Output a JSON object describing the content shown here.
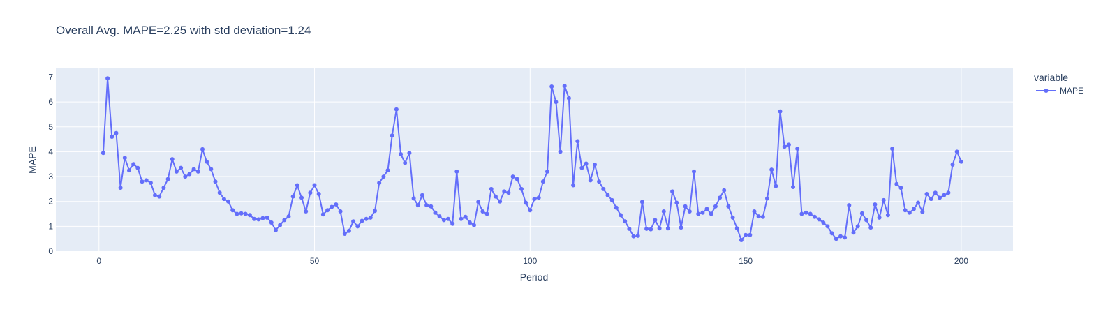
{
  "chart_data": {
    "type": "line",
    "title": "Overall Avg. MAPE=2.25 with std deviation=1.24",
    "xlabel": "Period",
    "ylabel": "MAPE",
    "xlim": [
      -10,
      212
    ],
    "ylim": [
      0,
      7.35
    ],
    "x_ticks": [
      0,
      50,
      100,
      150,
      200
    ],
    "y_ticks": [
      0,
      1,
      2,
      3,
      4,
      5,
      6,
      7
    ],
    "grid": true,
    "legend_title": "variable",
    "legend_position": "right",
    "series": [
      {
        "name": "MAPE",
        "color": "#636efa",
        "x": [
          1,
          2,
          3,
          4,
          5,
          6,
          7,
          8,
          9,
          10,
          11,
          12,
          13,
          14,
          15,
          16,
          17,
          18,
          19,
          20,
          21,
          22,
          23,
          24,
          25,
          26,
          27,
          28,
          29,
          30,
          31,
          32,
          33,
          34,
          35,
          36,
          37,
          38,
          39,
          40,
          41,
          42,
          43,
          44,
          45,
          46,
          47,
          48,
          49,
          50,
          51,
          52,
          53,
          54,
          55,
          56,
          57,
          58,
          59,
          60,
          61,
          62,
          63,
          64,
          65,
          66,
          67,
          68,
          69,
          70,
          71,
          72,
          73,
          74,
          75,
          76,
          77,
          78,
          79,
          80,
          81,
          82,
          83,
          84,
          85,
          86,
          87,
          88,
          89,
          90,
          91,
          92,
          93,
          94,
          95,
          96,
          97,
          98,
          99,
          100,
          101,
          102,
          103,
          104,
          105,
          106,
          107,
          108,
          109,
          110,
          111,
          112,
          113,
          114,
          115,
          116,
          117,
          118,
          119,
          120,
          121,
          122,
          123,
          124,
          125,
          126,
          127,
          128,
          129,
          130,
          131,
          132,
          133,
          134,
          135,
          136,
          137,
          138,
          139,
          140,
          141,
          142,
          143,
          144,
          145,
          146,
          147,
          148,
          149,
          150,
          151,
          152,
          153,
          154,
          155,
          156,
          157,
          158,
          159,
          160,
          161,
          162,
          163,
          164,
          165,
          166,
          167,
          168,
          169,
          170,
          171,
          172,
          173,
          174,
          175,
          176,
          177,
          178,
          179,
          180,
          181,
          182,
          183,
          184,
          185,
          186,
          187,
          188,
          189,
          190,
          191,
          192,
          193,
          194,
          195,
          196,
          197,
          198,
          199,
          200
        ],
        "values": [
          3.95,
          6.95,
          4.6,
          4.75,
          2.55,
          3.75,
          3.25,
          3.5,
          3.35,
          2.8,
          2.85,
          2.75,
          2.25,
          2.2,
          2.55,
          2.9,
          3.7,
          3.2,
          3.35,
          3.0,
          3.1,
          3.3,
          3.2,
          4.1,
          3.6,
          3.3,
          2.8,
          2.35,
          2.1,
          2.0,
          1.65,
          1.5,
          1.52,
          1.5,
          1.45,
          1.3,
          1.28,
          1.33,
          1.35,
          1.15,
          0.85,
          1.05,
          1.25,
          1.4,
          2.2,
          2.65,
          2.15,
          1.6,
          2.35,
          2.65,
          2.3,
          1.48,
          1.65,
          1.78,
          1.88,
          1.6,
          0.7,
          0.82,
          1.2,
          1.0,
          1.22,
          1.3,
          1.35,
          1.62,
          2.75,
          3.0,
          3.25,
          4.65,
          5.7,
          3.9,
          3.55,
          3.95,
          2.12,
          1.85,
          2.25,
          1.85,
          1.8,
          1.55,
          1.4,
          1.25,
          1.3,
          1.1,
          3.2,
          1.3,
          1.38,
          1.15,
          1.05,
          1.98,
          1.6,
          1.5,
          2.5,
          2.2,
          2.0,
          2.4,
          2.35,
          3.0,
          2.9,
          2.5,
          1.95,
          1.65,
          2.1,
          2.15,
          2.8,
          3.2,
          6.62,
          6.0,
          4.0,
          6.65,
          6.15,
          2.65,
          4.42,
          3.35,
          3.52,
          2.85,
          3.48,
          2.8,
          2.5,
          2.25,
          2.05,
          1.75,
          1.45,
          1.2,
          0.9,
          0.6,
          0.62,
          1.98,
          0.9,
          0.88,
          1.25,
          0.92,
          1.6,
          0.92,
          2.4,
          1.95,
          0.95,
          1.8,
          1.6,
          3.2,
          1.5,
          1.55,
          1.7,
          1.5,
          1.8,
          2.15,
          2.45,
          1.8,
          1.35,
          0.92,
          0.45,
          0.65,
          0.65,
          1.6,
          1.4,
          1.38,
          2.12,
          3.28,
          2.62,
          5.62,
          4.2,
          4.28,
          2.58,
          4.12,
          1.5,
          1.55,
          1.5,
          1.38,
          1.28,
          1.15,
          1.0,
          0.72,
          0.5,
          0.6,
          0.55,
          1.85,
          0.75,
          1.0,
          1.52,
          1.25,
          0.95,
          1.88,
          1.35,
          2.05,
          1.45,
          4.12,
          2.7,
          2.55,
          1.65,
          1.55,
          1.7,
          1.95,
          1.58,
          2.3,
          2.1,
          2.35,
          2.15,
          2.25,
          2.35,
          3.48,
          4.0,
          3.6
        ]
      }
    ]
  }
}
